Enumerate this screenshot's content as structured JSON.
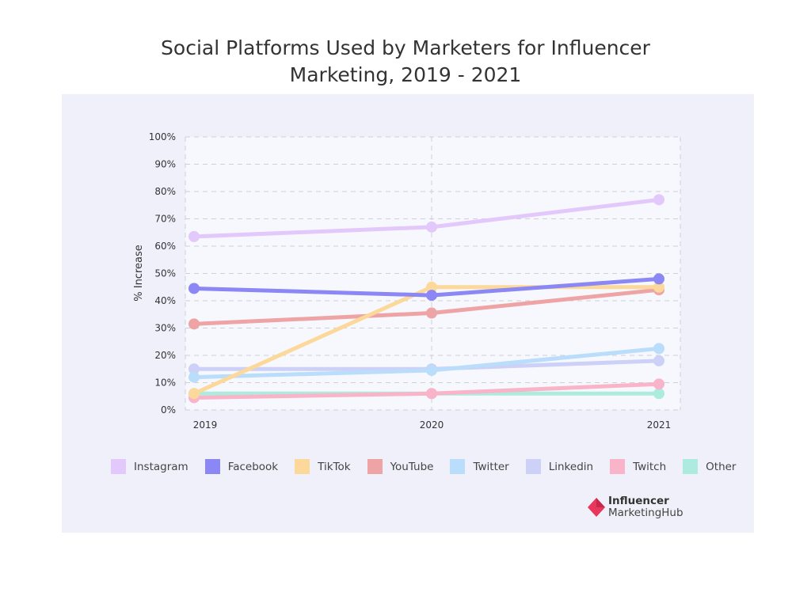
{
  "title_line1": "Social Platforms Used by Marketers for Influencer",
  "title_line2": "Marketing, 2019 - 2021",
  "brand": {
    "line1": "Influencer",
    "line2": "MarketingHub",
    "accent": "#e8365d"
  },
  "chart_data": {
    "type": "line",
    "title": "Social Platforms Used by Marketers for Influencer Marketing, 2019 - 2021",
    "xlabel": "",
    "ylabel": "% Increase",
    "x": [
      "2019",
      "2020",
      "2021"
    ],
    "ylim": [
      0,
      100
    ],
    "yticks": [
      "0%",
      "10%",
      "20%",
      "30%",
      "40%",
      "50%",
      "60%",
      "70%",
      "80%",
      "90%",
      "100%"
    ],
    "grid": true,
    "legend": "bottom",
    "series": [
      {
        "name": "Instagram",
        "color": "#e3c8fb",
        "values": [
          63.5,
          67,
          77
        ]
      },
      {
        "name": "Facebook",
        "color": "#8b87f5",
        "values": [
          44.5,
          42,
          48
        ]
      },
      {
        "name": "TikTok",
        "color": "#fcd99b",
        "values": [
          6,
          45,
          45
        ]
      },
      {
        "name": "YouTube",
        "color": "#eea4a4",
        "values": [
          31.5,
          35.5,
          44
        ]
      },
      {
        "name": "Twitter",
        "color": "#b9ddfb",
        "values": [
          12,
          14.5,
          22.5
        ]
      },
      {
        "name": "Linkedin",
        "color": "#cdd0f7",
        "values": [
          15,
          15,
          18
        ]
      },
      {
        "name": "Twitch",
        "color": "#f9b4c9",
        "values": [
          4.5,
          6,
          9.5
        ]
      },
      {
        "name": "Other",
        "color": "#acebde",
        "values": [
          6,
          6,
          6
        ]
      }
    ]
  }
}
